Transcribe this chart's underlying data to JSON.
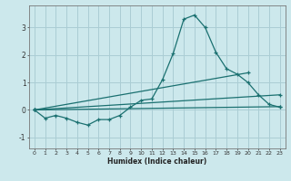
{
  "title": "",
  "xlabel": "Humidex (Indice chaleur)",
  "ylabel": "",
  "background_color": "#cce8ec",
  "grid_color": "#aacdd4",
  "line_color": "#1a7070",
  "xlim": [
    -0.5,
    23.5
  ],
  "ylim": [
    -1.4,
    3.8
  ],
  "yticks": [
    -1,
    0,
    1,
    2,
    3
  ],
  "xticks": [
    0,
    1,
    2,
    3,
    4,
    5,
    6,
    7,
    8,
    9,
    10,
    11,
    12,
    13,
    14,
    15,
    16,
    17,
    18,
    19,
    20,
    21,
    22,
    23
  ],
  "curve1_x": [
    0,
    1,
    2,
    3,
    4,
    5,
    6,
    7,
    8,
    9,
    10,
    11,
    12,
    13,
    14,
    15,
    16,
    17,
    18,
    19,
    20,
    21,
    22,
    23
  ],
  "curve1_y": [
    0.0,
    -0.3,
    -0.2,
    -0.3,
    -0.45,
    -0.55,
    -0.35,
    -0.35,
    -0.2,
    0.1,
    0.35,
    0.4,
    1.1,
    2.05,
    3.3,
    3.45,
    3.0,
    2.1,
    1.5,
    1.3,
    1.0,
    0.55,
    0.2,
    0.1
  ],
  "line2_x": [
    0,
    23
  ],
  "line2_y": [
    0.0,
    0.12
  ],
  "line3_x": [
    0,
    23
  ],
  "line3_y": [
    0.0,
    0.55
  ],
  "line4_x": [
    0,
    20
  ],
  "line4_y": [
    0.0,
    1.35
  ]
}
